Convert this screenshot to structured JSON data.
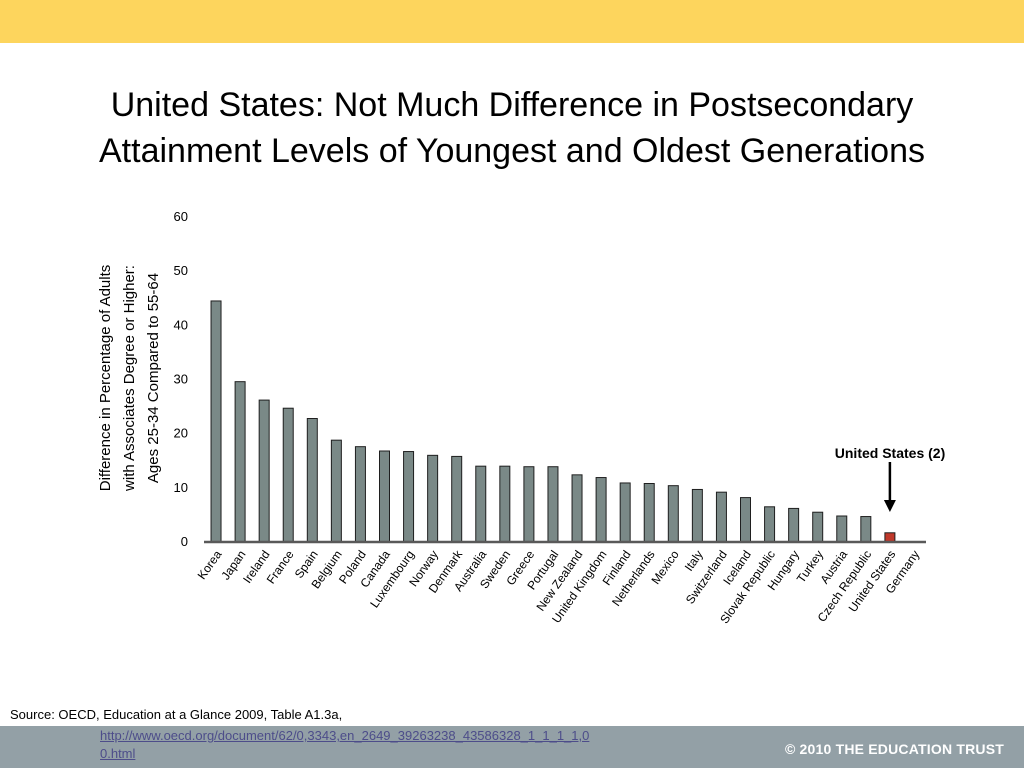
{
  "title": {
    "line1": "United States: Not Much Difference in Postsecondary",
    "line2": "Attainment Levels of Youngest and Oldest Generations"
  },
  "footer": {
    "source": "Source: OECD, Education at a Glance 2009, Table A1.3a,",
    "link": "http://www.oecd.org/document/62/0,3343,en_2649_39263238_43586328_1_1_1_1,00.html",
    "copyright": "© 2010 THE EDUCATION TRUST"
  },
  "colors": {
    "bar": "#7a8987",
    "highlight": "#c0392b",
    "top_band": "#fdd55d",
    "bottom_band": "#93a0a6"
  },
  "chart_data": {
    "type": "bar",
    "ylabel_lines": [
      "Difference in Percentage of  Adults",
      "with Associates Degree or Higher:",
      "Ages 25-34 Compared to 55-64"
    ],
    "ylim": [
      0,
      60
    ],
    "yticks": [
      0,
      10,
      20,
      30,
      40,
      50,
      60
    ],
    "grid": false,
    "categories": [
      "Korea",
      "Japan",
      "Ireland",
      "France",
      "Spain",
      "Belgium",
      "Poland",
      "Canada",
      "Luxembourg",
      "Norway",
      "Denmark",
      "Australia",
      "Sweden",
      "Greece",
      "Portugal",
      "New Zealand",
      "United Kingdom",
      "Finland",
      "Netherlands",
      "Mexico",
      "Italy",
      "Switzerland",
      "Iceland",
      "Slovak Republic",
      "Hungary",
      "Turkey",
      "Austria",
      "Czech Republic",
      "United States",
      "Germany"
    ],
    "values": [
      44.5,
      29.6,
      26.2,
      24.7,
      22.8,
      18.8,
      17.6,
      16.8,
      16.7,
      16.0,
      15.8,
      14.0,
      14.0,
      13.9,
      13.9,
      12.4,
      11.9,
      10.9,
      10.8,
      10.4,
      9.7,
      9.2,
      8.2,
      6.5,
      6.2,
      5.5,
      4.8,
      4.7,
      1.7,
      0.0
    ],
    "highlight_category": "United States",
    "annotation": "United States (2)"
  }
}
